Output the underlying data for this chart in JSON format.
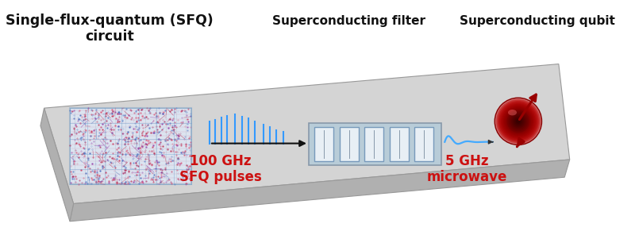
{
  "fig_width": 8.0,
  "fig_height": 3.01,
  "dpi": 100,
  "bg_color": "#ffffff",
  "board_top_color": "#d4d4d4",
  "board_side_color": "#b0b0b0",
  "board_bottom_color": "#aaaaaa",
  "sfq_label": "Single-flux-quantum (SFQ)\ncircuit",
  "filter_label": "Superconducting filter",
  "qubit_label": "Superconducting qubit",
  "pulses_label": "100 GHz\nSFQ pulses",
  "microwave_label": "5 GHz\nmicrowave",
  "red_color": "#cc1111",
  "black_color": "#111111",
  "pulse_color": "#3399ff",
  "wave_color": "#44aaff",
  "chip_border_color": "#aabbcc",
  "filter_bg_color": "#b8ccd8",
  "filter_box_color": "#d8e4ee"
}
